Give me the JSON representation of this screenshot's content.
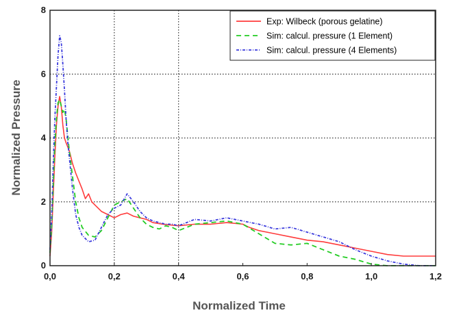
{
  "chart_data": {
    "type": "line",
    "xlabel": "Normalized Time",
    "ylabel": "Normalized Pressure",
    "xlim": [
      0,
      1.2
    ],
    "ylim": [
      0,
      8
    ],
    "x_ticks": [
      0,
      0.2,
      0.4,
      0.6,
      0.8,
      1.0,
      1.2
    ],
    "x_tick_labels": [
      "0,0",
      "0,2",
      "0,4",
      "0,6",
      "0,8",
      "1,0",
      "1,2"
    ],
    "y_ticks": [
      0,
      2,
      4,
      6,
      8
    ],
    "y_tick_labels": [
      "0",
      "2",
      "4",
      "6",
      "8"
    ],
    "grid": "dotted at x=0.2, 0.4 and y=2, 4, 6",
    "legend_position": "top-right",
    "series": [
      {
        "name": "Exp: Wilbeck (porous gelatine)",
        "color": "#ff3b3b",
        "style": "solid",
        "x": [
          0,
          0.005,
          0.01,
          0.015,
          0.02,
          0.025,
          0.03,
          0.035,
          0.04,
          0.045,
          0.05,
          0.06,
          0.07,
          0.08,
          0.09,
          0.1,
          0.11,
          0.12,
          0.13,
          0.14,
          0.15,
          0.16,
          0.18,
          0.2,
          0.22,
          0.24,
          0.26,
          0.28,
          0.3,
          0.32,
          0.35,
          0.4,
          0.45,
          0.5,
          0.55,
          0.6,
          0.62,
          0.65,
          0.7,
          0.75,
          0.8,
          0.85,
          0.9,
          0.95,
          1.0,
          1.05,
          1.1,
          1.15,
          1.2
        ],
        "y": [
          0.3,
          1.0,
          2.2,
          3.4,
          4.4,
          5.0,
          5.3,
          5.0,
          4.4,
          4.0,
          3.85,
          3.6,
          3.2,
          2.9,
          2.65,
          2.4,
          2.1,
          2.25,
          2.0,
          1.9,
          1.8,
          1.7,
          1.6,
          1.5,
          1.6,
          1.65,
          1.55,
          1.5,
          1.45,
          1.35,
          1.3,
          1.25,
          1.3,
          1.3,
          1.35,
          1.3,
          1.2,
          1.1,
          1.0,
          0.9,
          0.8,
          0.75,
          0.65,
          0.55,
          0.45,
          0.35,
          0.3,
          0.3,
          0.3
        ]
      },
      {
        "name": "Sim: calcul. pressure (1 Element)",
        "color": "#22cc22",
        "style": "dashed",
        "x": [
          0,
          0.005,
          0.01,
          0.015,
          0.02,
          0.025,
          0.03,
          0.035,
          0.04,
          0.045,
          0.05,
          0.055,
          0.06,
          0.07,
          0.08,
          0.09,
          0.1,
          0.12,
          0.14,
          0.16,
          0.18,
          0.2,
          0.22,
          0.24,
          0.26,
          0.28,
          0.3,
          0.32,
          0.34,
          0.36,
          0.38,
          0.4,
          0.45,
          0.5,
          0.55,
          0.6,
          0.65,
          0.7,
          0.75,
          0.8,
          0.85,
          0.9,
          0.95,
          1.0,
          1.05,
          1.1,
          1.15,
          1.2
        ],
        "y": [
          0.4,
          1.2,
          2.5,
          3.8,
          4.6,
          5.1,
          5.2,
          5.0,
          4.8,
          4.9,
          4.6,
          4.1,
          3.6,
          2.8,
          2.0,
          1.5,
          1.2,
          0.95,
          0.9,
          1.1,
          1.5,
          1.9,
          2.0,
          2.1,
          1.8,
          1.5,
          1.3,
          1.2,
          1.15,
          1.25,
          1.2,
          1.1,
          1.3,
          1.35,
          1.4,
          1.3,
          1.0,
          0.7,
          0.65,
          0.7,
          0.5,
          0.3,
          0.2,
          0.05,
          0.0,
          0.0,
          0.0,
          0.0
        ]
      },
      {
        "name": "Sim: calcul. pressure (4 Elements)",
        "color": "#3b3bdd",
        "style": "dash-dot",
        "x": [
          0,
          0.005,
          0.01,
          0.015,
          0.02,
          0.025,
          0.03,
          0.035,
          0.04,
          0.045,
          0.05,
          0.055,
          0.06,
          0.07,
          0.08,
          0.09,
          0.1,
          0.12,
          0.14,
          0.16,
          0.18,
          0.2,
          0.22,
          0.24,
          0.26,
          0.28,
          0.3,
          0.32,
          0.34,
          0.36,
          0.38,
          0.4,
          0.45,
          0.5,
          0.55,
          0.6,
          0.65,
          0.7,
          0.75,
          0.8,
          0.85,
          0.9,
          0.95,
          1.0,
          1.05,
          1.1,
          1.15,
          1.2
        ],
        "y": [
          0.5,
          1.5,
          3.2,
          4.6,
          5.6,
          6.6,
          7.2,
          7.0,
          6.3,
          5.5,
          4.6,
          3.9,
          3.4,
          2.4,
          1.6,
          1.2,
          0.95,
          0.75,
          0.8,
          1.2,
          1.6,
          1.8,
          1.9,
          2.25,
          2.0,
          1.7,
          1.5,
          1.4,
          1.35,
          1.3,
          1.3,
          1.25,
          1.45,
          1.4,
          1.5,
          1.4,
          1.3,
          1.15,
          1.2,
          1.05,
          0.9,
          0.75,
          0.5,
          0.3,
          0.15,
          0.05,
          0.0,
          0.0
        ]
      }
    ]
  }
}
